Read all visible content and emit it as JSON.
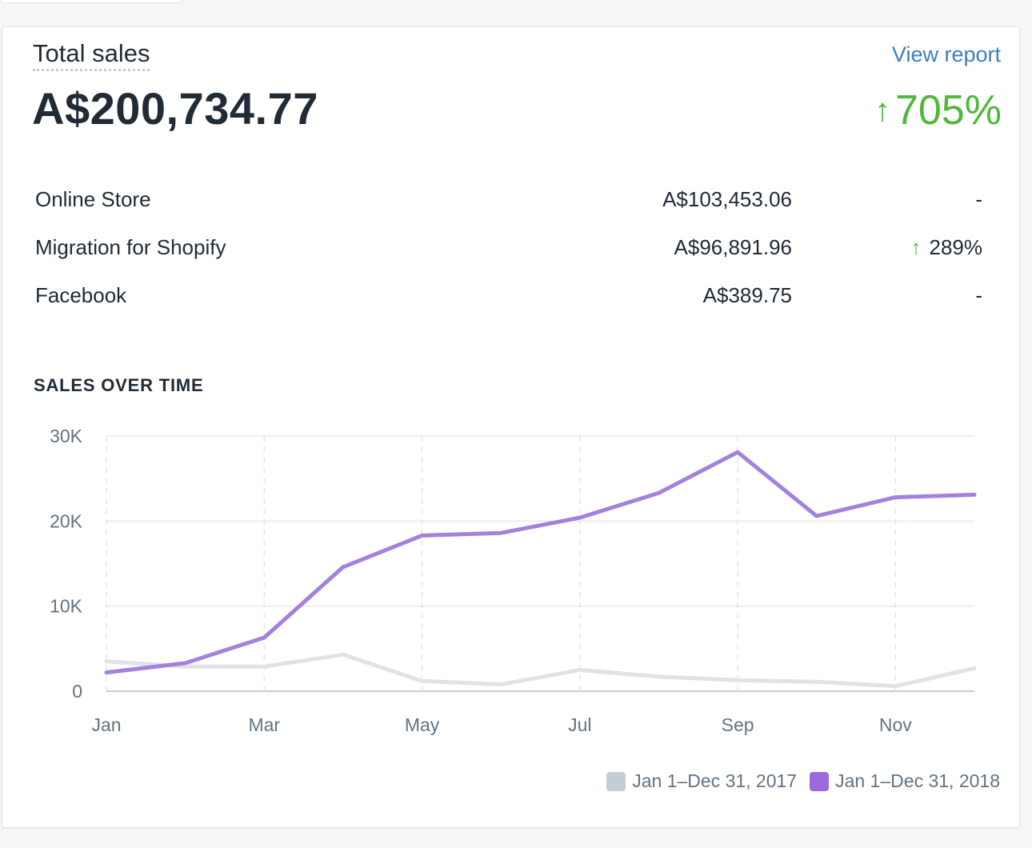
{
  "card": {
    "title": "Total sales",
    "view_report": "View report",
    "total": "A$200,734.77",
    "total_change_arrow": "↑",
    "total_change": "705%"
  },
  "breakdown": [
    {
      "name": "Online Store",
      "value": "A$103,453.06",
      "change": "-",
      "up": ""
    },
    {
      "name": "Migration for Shopify",
      "value": "A$96,891.96",
      "change": "289%",
      "up": "↑"
    },
    {
      "name": "Facebook",
      "value": "A$389.75",
      "change": "-",
      "up": ""
    }
  ],
  "section_title": "SALES OVER TIME",
  "colors": {
    "series_2017": "#dfe3e8",
    "series_2018": "#a381dd",
    "swatch_2017": "#c4cdd5",
    "swatch_2018": "#9c6ade",
    "positive": "#50b83c",
    "link": "#3a7fc1"
  },
  "chart_data": {
    "type": "line",
    "x": [
      1,
      2,
      3,
      4,
      5,
      6,
      7,
      8,
      9,
      10,
      11,
      12
    ],
    "x_ticks": [
      {
        "x": 1,
        "label": "Jan"
      },
      {
        "x": 3,
        "label": "Mar"
      },
      {
        "x": 5,
        "label": "May"
      },
      {
        "x": 7,
        "label": "Jul"
      },
      {
        "x": 9,
        "label": "Sep"
      },
      {
        "x": 11,
        "label": "Nov"
      }
    ],
    "y_ticks": [
      {
        "y": 0,
        "label": "0"
      },
      {
        "y": 10000,
        "label": "10K"
      },
      {
        "y": 20000,
        "label": "20K"
      },
      {
        "y": 30000,
        "label": "30K"
      }
    ],
    "ylim": [
      0,
      30000
    ],
    "xlim": [
      1,
      12
    ],
    "series": [
      {
        "name": "Jan 1–Dec 31, 2017",
        "color": "#dfe3e8",
        "values": [
          3500,
          2900,
          2900,
          4300,
          1200,
          800,
          2500,
          1700,
          1300,
          1100,
          600,
          2700
        ]
      },
      {
        "name": "Jan 1–Dec 31, 2018",
        "color": "#a381dd",
        "values": [
          2200,
          3300,
          6300,
          14600,
          18300,
          18600,
          20400,
          23300,
          28100,
          20600,
          22800,
          23100
        ]
      }
    ],
    "grid": true,
    "legend_position": "bottom-right"
  }
}
